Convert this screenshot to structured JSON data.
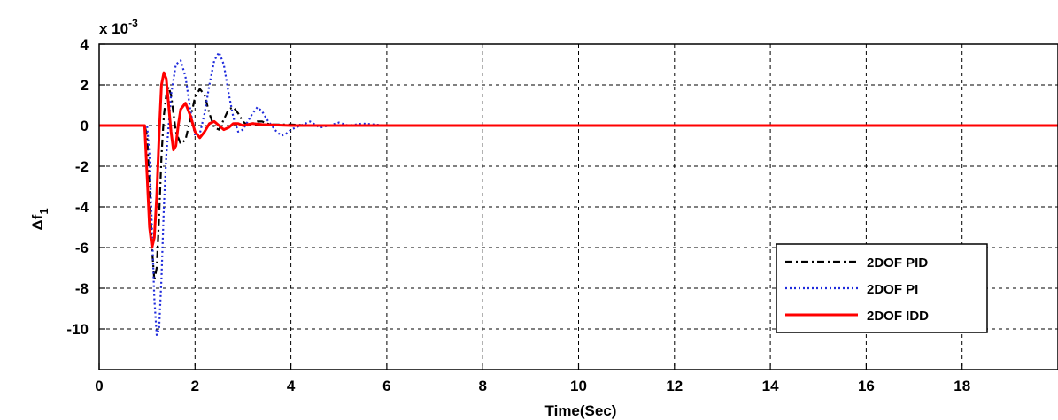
{
  "chart_data": {
    "type": "line",
    "xlabel": "Time(Sec)",
    "ylabel_main": "Δf",
    "ylabel_sub": "1",
    "exponent_prefix": "x 10",
    "exponent_power": "-3",
    "xlim": [
      0,
      20
    ],
    "ylim": [
      -12,
      4
    ],
    "xticks": [
      0,
      2,
      4,
      6,
      8,
      10,
      12,
      14,
      16,
      18
    ],
    "xtick_labels": [
      "0",
      "2",
      "4",
      "6",
      "8",
      "10",
      "12",
      "14",
      "16",
      "18"
    ],
    "yticks": [
      4,
      2,
      0,
      -2,
      -4,
      -6,
      -8,
      -10
    ],
    "ytick_labels": [
      "4",
      "2",
      "0",
      "-2",
      "-4",
      "-6",
      "-8",
      "-10"
    ],
    "grid": true,
    "legend_position": "bottom-right",
    "series": [
      {
        "name": "2DOF PID",
        "color": "#000000",
        "style": "dashdot",
        "x": [
          0,
          0.95,
          1.0,
          1.05,
          1.1,
          1.15,
          1.2,
          1.25,
          1.3,
          1.35,
          1.4,
          1.45,
          1.5,
          1.55,
          1.6,
          1.7,
          1.8,
          1.9,
          2.0,
          2.1,
          2.2,
          2.3,
          2.4,
          2.5,
          2.6,
          2.7,
          2.8,
          2.9,
          3.0,
          3.1,
          3.2,
          3.3,
          3.4,
          3.5,
          3.6,
          3.8,
          4.0,
          4.5,
          5.0,
          6.0,
          20
        ],
        "y": [
          0,
          0,
          -0.5,
          -3.0,
          -6.0,
          -7.6,
          -7.0,
          -4.5,
          -1.5,
          0.5,
          1.5,
          1.9,
          1.5,
          0.6,
          -0.3,
          -0.9,
          -0.7,
          0.3,
          1.4,
          1.8,
          1.5,
          0.6,
          -0.1,
          -0.2,
          0.3,
          0.8,
          0.9,
          0.6,
          0.2,
          0.0,
          0.1,
          0.2,
          0.2,
          0.1,
          0.05,
          0.05,
          0.05,
          0.0,
          0.0,
          0.0,
          0.0
        ]
      },
      {
        "name": "2DOF PI",
        "color": "#1f2bdc",
        "style": "dotted",
        "x": [
          0,
          1.0,
          1.05,
          1.1,
          1.15,
          1.2,
          1.25,
          1.3,
          1.35,
          1.4,
          1.5,
          1.6,
          1.7,
          1.8,
          1.9,
          2.0,
          2.1,
          2.2,
          2.3,
          2.4,
          2.5,
          2.6,
          2.7,
          2.8,
          2.9,
          3.0,
          3.1,
          3.2,
          3.3,
          3.4,
          3.5,
          3.6,
          3.7,
          3.8,
          3.9,
          4.0,
          4.2,
          4.4,
          4.6,
          4.8,
          5.0,
          5.2,
          5.5,
          6.0,
          20
        ],
        "y": [
          0,
          0,
          -1.5,
          -5.0,
          -8.5,
          -10.3,
          -10.0,
          -7.5,
          -4.0,
          -1.5,
          1.5,
          3.0,
          3.2,
          2.4,
          0.8,
          -0.5,
          -0.4,
          0.6,
          2.0,
          3.2,
          3.6,
          3.0,
          1.6,
          0.4,
          -0.3,
          -0.2,
          0.2,
          0.6,
          0.9,
          0.7,
          0.3,
          0.0,
          -0.3,
          -0.5,
          -0.4,
          -0.2,
          0.0,
          0.2,
          -0.1,
          0.0,
          0.15,
          0.0,
          0.1,
          0.0,
          0.0
        ]
      },
      {
        "name": "2DOF IDD",
        "color": "#ff0000",
        "style": "solid",
        "x": [
          0,
          0.95,
          1.0,
          1.05,
          1.1,
          1.15,
          1.2,
          1.25,
          1.3,
          1.35,
          1.4,
          1.45,
          1.5,
          1.55,
          1.6,
          1.65,
          1.7,
          1.8,
          1.9,
          2.0,
          2.1,
          2.2,
          2.3,
          2.4,
          2.5,
          2.6,
          2.7,
          2.8,
          2.9,
          3.0,
          3.2,
          3.4,
          4.0,
          5.0,
          20
        ],
        "y": [
          0,
          0,
          -2.5,
          -5.0,
          -6.0,
          -5.5,
          -3.5,
          -0.5,
          2.0,
          2.6,
          2.3,
          1.0,
          -0.3,
          -1.2,
          -1.0,
          0.0,
          0.8,
          1.1,
          0.5,
          -0.3,
          -0.6,
          -0.3,
          0.1,
          0.2,
          0.0,
          -0.2,
          -0.1,
          0.1,
          0.1,
          0.0,
          0.1,
          0.05,
          0.0,
          0.0,
          0.0
        ]
      }
    ]
  }
}
